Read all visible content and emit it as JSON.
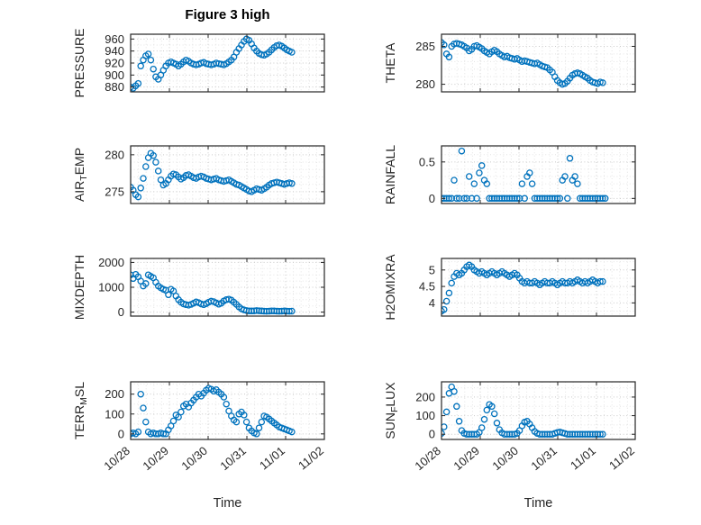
{
  "chart_data": {
    "type": "scatter",
    "title": "Figure 3 high",
    "xlabel": "Time",
    "grid": true,
    "minor_grid": true,
    "legend": "none",
    "marker": {
      "shape": "circle-open",
      "color": "#0072BD"
    },
    "xlim": [
      0,
      5
    ],
    "x_minor": 0.2,
    "x_ticks": {
      "values": [
        0,
        1,
        2,
        3,
        4,
        5
      ],
      "labels": [
        "10/28",
        "10/29",
        "10/30",
        "10/31",
        "11/01",
        "11/02"
      ]
    },
    "subplots": [
      {
        "name": "PRESSURE",
        "ylabel": [
          {
            "t": "PRESSURE"
          }
        ],
        "ylim": [
          872,
          968
        ],
        "yticks": [
          880,
          900,
          920,
          940,
          960
        ],
        "yminor": 10,
        "x0": 0,
        "dx": 0.065,
        "y": [
          880,
          878,
          882,
          886,
          915,
          925,
          932,
          935,
          925,
          910,
          897,
          893,
          900,
          908,
          915,
          920,
          922,
          920,
          918,
          915,
          918,
          922,
          925,
          923,
          920,
          918,
          917,
          918,
          920,
          921,
          919,
          918,
          917,
          918,
          920,
          919,
          918,
          917,
          919,
          922,
          925,
          930,
          938,
          944,
          950,
          956,
          960,
          958,
          952,
          945,
          940,
          936,
          934,
          933,
          935,
          938,
          942,
          946,
          949,
          950,
          948,
          945,
          942,
          940,
          938
        ]
      },
      {
        "name": "THETA",
        "ylabel": [
          {
            "t": "THETA"
          }
        ],
        "ylim": [
          279,
          286.6
        ],
        "yticks": [
          280,
          285
        ],
        "yminor": 1,
        "x0": 0,
        "dx": 0.065,
        "y": [
          285.5,
          285.2,
          284.0,
          283.6,
          285.0,
          285.3,
          285.4,
          285.3,
          285.2,
          285.0,
          284.8,
          284.4,
          284.6,
          285.0,
          285.1,
          284.9,
          284.7,
          284.4,
          284.2,
          284.0,
          284.3,
          284.5,
          284.3,
          284.0,
          283.8,
          283.6,
          283.7,
          283.5,
          283.4,
          283.3,
          283.4,
          283.2,
          283.0,
          283.1,
          283.0,
          282.9,
          282.8,
          282.7,
          282.8,
          282.6,
          282.4,
          282.3,
          282.2,
          281.9,
          281.6,
          281.0,
          280.5,
          280.2,
          280.0,
          280.1,
          280.4,
          280.8,
          281.2,
          281.4,
          281.5,
          281.4,
          281.2,
          281.0,
          280.8,
          280.5,
          280.3,
          280.2,
          280.1,
          280.3,
          280.2
        ]
      },
      {
        "name": "AIR_TEMP",
        "ylabel": [
          {
            "t": "AIR"
          },
          {
            "t": "T",
            "sub": true
          },
          {
            "t": "EMP"
          }
        ],
        "ylim": [
          273.4,
          281.2
        ],
        "yticks": [
          275,
          280
        ],
        "yminor": 1,
        "x0": 0,
        "dx": 0.065,
        "y": [
          275.6,
          275.2,
          274.6,
          274.3,
          275.5,
          276.8,
          278.4,
          279.6,
          280.2,
          279.9,
          279.0,
          277.8,
          276.6,
          275.9,
          276.1,
          276.6,
          277.1,
          277.4,
          277.3,
          277.0,
          276.7,
          276.9,
          277.2,
          277.3,
          277.1,
          276.9,
          276.8,
          277.0,
          277.1,
          277.0,
          276.8,
          276.7,
          276.6,
          276.7,
          276.8,
          276.6,
          276.5,
          276.4,
          276.5,
          276.6,
          276.4,
          276.2,
          276.0,
          275.9,
          275.7,
          275.5,
          275.3,
          275.1,
          275.0,
          275.2,
          275.4,
          275.3,
          275.2,
          275.4,
          275.6,
          275.9,
          276.1,
          276.2,
          276.3,
          276.2,
          276.1,
          276.0,
          276.1,
          276.2,
          276.1
        ]
      },
      {
        "name": "RAINFALL",
        "ylabel": [
          {
            "t": "RAINFALL"
          }
        ],
        "ylim": [
          -0.07,
          0.72
        ],
        "yticks": [
          0,
          0.5
        ],
        "yminor": 0.1,
        "x0": 0,
        "dx": 0.065,
        "y": [
          0,
          0,
          0,
          0,
          0,
          0.25,
          0,
          0,
          0.65,
          0,
          0,
          0.3,
          0,
          0.2,
          0,
          0.35,
          0.45,
          0.25,
          0.2,
          0,
          0,
          0,
          0,
          0,
          0,
          0,
          0,
          0,
          0,
          0,
          0,
          0,
          0.2,
          0,
          0.3,
          0.35,
          0.2,
          0,
          0,
          0,
          0,
          0,
          0,
          0,
          0,
          0,
          0,
          0,
          0.25,
          0.3,
          0,
          0.55,
          0.25,
          0.3,
          0.2,
          0,
          0,
          0,
          0,
          0,
          0,
          0,
          0,
          0,
          0,
          0
        ]
      },
      {
        "name": "MIXDEPTH",
        "ylabel": [
          {
            "t": "MIXDEPTH"
          }
        ],
        "ylim": [
          -160,
          2160
        ],
        "yticks": [
          0,
          1000,
          2000
        ],
        "yminor": 250,
        "x0": 0,
        "dx": 0.065,
        "y": [
          1500,
          1350,
          1520,
          1420,
          1250,
          1050,
          1150,
          1500,
          1440,
          1380,
          1200,
          1050,
          980,
          920,
          880,
          700,
          920,
          850,
          650,
          500,
          400,
          330,
          300,
          280,
          310,
          360,
          410,
          380,
          330,
          300,
          340,
          400,
          440,
          420,
          370,
          320,
          360,
          450,
          500,
          520,
          480,
          400,
          310,
          210,
          130,
          90,
          60,
          50,
          45,
          50,
          60,
          55,
          45,
          40,
          35,
          40,
          50,
          45,
          40,
          35,
          40,
          45,
          40,
          35,
          40
        ]
      },
      {
        "name": "H2OMIXRA",
        "ylabel": [
          {
            "t": "H2OMIXRA"
          }
        ],
        "ylim": [
          3.6,
          5.35
        ],
        "yticks": [
          4,
          4.5,
          5
        ],
        "yminor": 0.25,
        "x0": 0,
        "dx": 0.065,
        "y": [
          3.75,
          3.8,
          4.05,
          4.3,
          4.6,
          4.8,
          4.9,
          4.85,
          4.9,
          5.0,
          5.1,
          5.15,
          5.1,
          5.0,
          4.95,
          4.9,
          4.95,
          4.9,
          4.85,
          4.9,
          4.95,
          4.9,
          4.85,
          4.9,
          4.95,
          4.9,
          4.85,
          4.8,
          4.85,
          4.9,
          4.85,
          4.75,
          4.65,
          4.6,
          4.65,
          4.6,
          4.6,
          4.65,
          4.6,
          4.55,
          4.6,
          4.65,
          4.6,
          4.6,
          4.65,
          4.6,
          4.55,
          4.6,
          4.65,
          4.6,
          4.6,
          4.65,
          4.6,
          4.65,
          4.7,
          4.65,
          4.6,
          4.65,
          4.6,
          4.65,
          4.7,
          4.65,
          4.6,
          4.65,
          4.65
        ]
      },
      {
        "name": "TERR_MSL",
        "ylabel": [
          {
            "t": "TERR"
          },
          {
            "t": "M",
            "sub": true
          },
          {
            "t": "SL"
          }
        ],
        "ylim": [
          -28,
          262
        ],
        "yticks": [
          0,
          100,
          200
        ],
        "yminor": 50,
        "x0": 0,
        "dx": 0.065,
        "y": [
          0,
          5,
          0,
          10,
          200,
          130,
          60,
          10,
          0,
          5,
          0,
          0,
          5,
          0,
          0,
          20,
          40,
          65,
          95,
          85,
          110,
          140,
          150,
          135,
          155,
          170,
          185,
          200,
          190,
          205,
          220,
          230,
          225,
          215,
          222,
          210,
          200,
          185,
          150,
          115,
          90,
          70,
          60,
          100,
          110,
          95,
          60,
          30,
          15,
          5,
          0,
          30,
          60,
          90,
          85,
          75,
          65,
          55,
          45,
          35,
          30,
          25,
          20,
          15,
          10
        ]
      },
      {
        "name": "SUN_FLUX",
        "ylabel": [
          {
            "t": "SUN"
          },
          {
            "t": "F",
            "sub": true
          },
          {
            "t": "LUX"
          }
        ],
        "ylim": [
          -28,
          282
        ],
        "yticks": [
          0,
          100,
          200
        ],
        "yminor": 50,
        "x0": 0,
        "dx": 0.065,
        "y": [
          5,
          40,
          120,
          220,
          255,
          230,
          150,
          70,
          20,
          5,
          0,
          0,
          0,
          0,
          0,
          10,
          35,
          80,
          130,
          160,
          150,
          110,
          60,
          25,
          8,
          0,
          0,
          0,
          0,
          0,
          5,
          20,
          45,
          65,
          70,
          55,
          35,
          15,
          5,
          0,
          0,
          0,
          0,
          0,
          0,
          5,
          10,
          12,
          8,
          4,
          0,
          0,
          0,
          0,
          0,
          0,
          0,
          0,
          0,
          0,
          0,
          0,
          0,
          0,
          0
        ]
      }
    ]
  }
}
